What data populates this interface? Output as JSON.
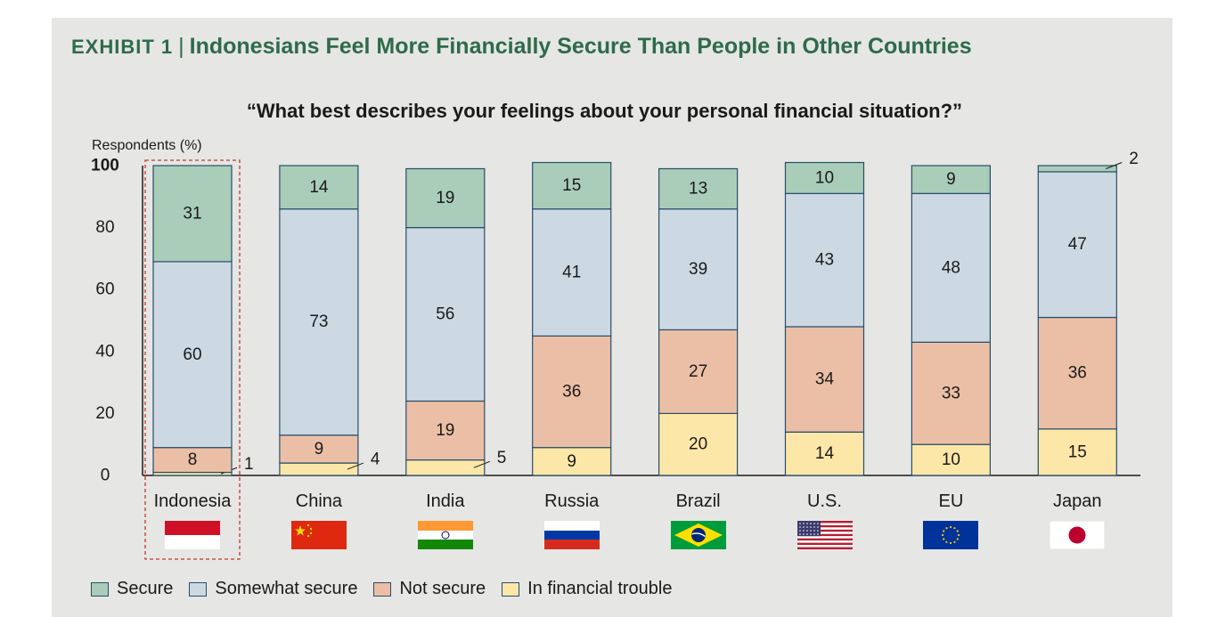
{
  "header": {
    "exhibit_label": "EXHIBIT 1",
    "separator": "|",
    "title": "Indonesians Feel More Financially Secure Than People in Other Countries"
  },
  "chart_data": {
    "type": "bar",
    "stacked": true,
    "title": "“What best describes your feelings about your personal financial situation?”",
    "ylabel": "Respondents (%)",
    "ylim": [
      0,
      100
    ],
    "yticks": [
      0,
      20,
      40,
      60,
      80,
      100
    ],
    "categories": [
      "Indonesia",
      "China",
      "India",
      "Russia",
      "Brazil",
      "U.S.",
      "EU",
      "Japan"
    ],
    "series": [
      {
        "name": "In financial trouble",
        "color": "#fce7a8",
        "values": [
          1,
          4,
          5,
          9,
          20,
          14,
          10,
          15
        ]
      },
      {
        "name": "Not secure",
        "color": "#ebbfa6",
        "values": [
          8,
          9,
          19,
          36,
          27,
          34,
          33,
          36
        ]
      },
      {
        "name": "Somewhat secure",
        "color": "#ccd9e3",
        "values": [
          60,
          73,
          56,
          41,
          39,
          43,
          48,
          47
        ]
      },
      {
        "name": "Secure",
        "color": "#a9cdb8",
        "values": [
          31,
          14,
          19,
          15,
          13,
          10,
          9,
          2
        ]
      }
    ],
    "highlighted_category": "Indonesia",
    "legend_position": "bottom",
    "grid": false
  },
  "flags": [
    "indonesia-flag-icon",
    "china-flag-icon",
    "india-flag-icon",
    "russia-flag-icon",
    "brazil-flag-icon",
    "us-flag-icon",
    "eu-flag-icon",
    "japan-flag-icon"
  ],
  "legend": [
    "Secure",
    "Somewhat secure",
    "Not secure",
    "In financial trouble"
  ],
  "colors": {
    "title_green": "#2e6b4a",
    "bar_border": "#274d6a",
    "highlight_box": "#c0392b",
    "panel_bg": "#e6e6e4"
  }
}
